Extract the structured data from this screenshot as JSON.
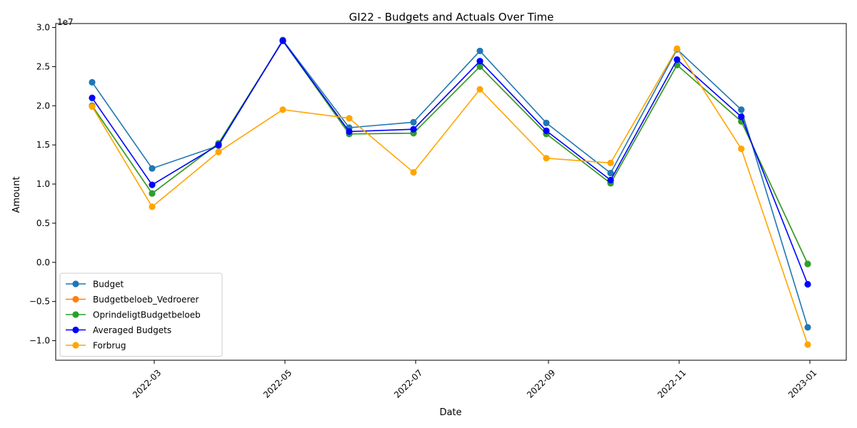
{
  "chart_data": {
    "type": "line",
    "title": "GI22 - Budgets and Actuals Over Time",
    "xlabel": "Date",
    "ylabel": "Amount",
    "y_scale_note": "1e7",
    "ylim": [
      -12500000,
      30500000
    ],
    "xlim": [
      "2022-01-14",
      "2023-01-18"
    ],
    "grid": false,
    "legend_position": "lower-left",
    "x": [
      "2022-01-31",
      "2022-02-28",
      "2022-03-31",
      "2022-04-30",
      "2022-05-31",
      "2022-06-30",
      "2022-07-31",
      "2022-08-31",
      "2022-09-30",
      "2022-10-31",
      "2022-11-30",
      "2022-12-31"
    ],
    "x_ticks": [
      {
        "date": "2022-03-01",
        "label": "2022-03"
      },
      {
        "date": "2022-05-01",
        "label": "2022-05"
      },
      {
        "date": "2022-07-01",
        "label": "2022-07"
      },
      {
        "date": "2022-09-01",
        "label": "2022-09"
      },
      {
        "date": "2022-11-01",
        "label": "2022-11"
      },
      {
        "date": "2023-01-01",
        "label": "2023-01"
      }
    ],
    "y_ticks": [
      {
        "value": -10000000,
        "label": "−1.0"
      },
      {
        "value": -5000000,
        "label": "−0.5"
      },
      {
        "value": 0,
        "label": "0.0"
      },
      {
        "value": 5000000,
        "label": "0.5"
      },
      {
        "value": 10000000,
        "label": "1.0"
      },
      {
        "value": 15000000,
        "label": "1.5"
      },
      {
        "value": 20000000,
        "label": "2.0"
      },
      {
        "value": 25000000,
        "label": "2.5"
      },
      {
        "value": 30000000,
        "label": "3.0"
      }
    ],
    "series": [
      {
        "name": "Budget",
        "color": "#1f77b4",
        "values": [
          23000000,
          12000000,
          14900000,
          28400000,
          17200000,
          17900000,
          27000000,
          17800000,
          11400000,
          27200000,
          19500000,
          -8300000
        ]
      },
      {
        "name": "Budgetbeloeb_Vedroerer",
        "color": "#ff7f0e",
        "values": [
          20000000,
          8800000,
          15200000,
          28300000,
          16400000,
          16500000,
          25000000,
          16400000,
          10100000,
          25200000,
          18000000,
          -200000
        ]
      },
      {
        "name": "OprindeligtBudgetbeloeb",
        "color": "#2ca02c",
        "values": [
          20000000,
          8800000,
          15200000,
          28300000,
          16400000,
          16500000,
          25000000,
          16400000,
          10100000,
          25200000,
          18000000,
          -200000
        ]
      },
      {
        "name": "Averaged Budgets",
        "color": "#0000ff",
        "values": [
          21000000,
          9900000,
          15000000,
          28300000,
          16700000,
          17000000,
          25700000,
          16800000,
          10500000,
          25900000,
          18600000,
          -2800000
        ]
      },
      {
        "name": "Forbrug",
        "color": "#ffa500",
        "values": [
          19900000,
          7100000,
          14100000,
          19500000,
          18400000,
          11500000,
          22100000,
          13300000,
          12700000,
          27300000,
          14500000,
          -10500000
        ]
      }
    ]
  }
}
